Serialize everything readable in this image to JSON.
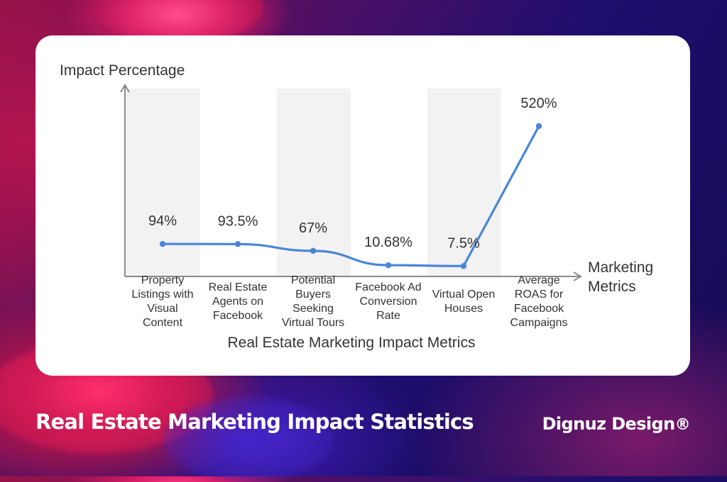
{
  "page": {
    "title": "Real Estate Marketing Impact Statistics",
    "brand": "Dignuz Design",
    "brand_mark": "®"
  },
  "chart_data": {
    "type": "line",
    "title": "",
    "xlabel": "Real Estate Marketing Impact Metrics",
    "ylabel": "Impact Percentage",
    "x_axis_end_label": [
      "Marketing",
      "Metrics"
    ],
    "categories": [
      [
        "Property",
        "Listings with",
        "Visual",
        "Content"
      ],
      [
        "Real Estate",
        "Agents on",
        "Facebook"
      ],
      [
        "Potential",
        "Buyers",
        "Seeking",
        "Virtual Tours"
      ],
      [
        "Facebook Ad",
        "Conversion",
        "Rate"
      ],
      [
        "Virtual Open",
        "Houses"
      ],
      [
        "Average",
        "ROAS for",
        "Facebook",
        "Campaigns"
      ]
    ],
    "series": [
      {
        "values": [
          94,
          93.5,
          67,
          10.68,
          7.5,
          520
        ]
      }
    ],
    "data_labels": [
      "94%",
      "93.5%",
      "67%",
      "10.68%",
      "7.5%",
      "520%"
    ],
    "ylim": [
      0,
      550
    ],
    "grid": false,
    "alternating_column_bands": true,
    "colors": {
      "line": "#4a86d8",
      "band": "#f2f2f2",
      "axis": "#8a8a8a",
      "text": "#333333"
    }
  }
}
